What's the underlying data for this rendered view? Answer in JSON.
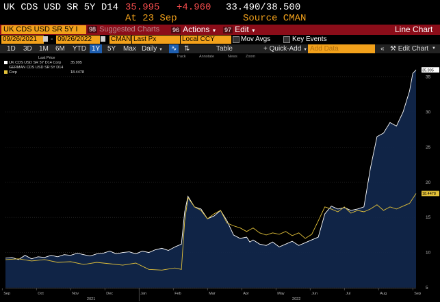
{
  "header": {
    "ticker": "UK CDS USD SR 5Y D14",
    "price": "35.995",
    "change": "+4.960",
    "range": "33.490/38.500",
    "date_line": "At 23 Sep",
    "source_line": "Source CMAN"
  },
  "toolbar": {
    "security": "UK CDS USD SR 5Y I",
    "suggested_num": "98",
    "suggested_label": "Suggested Charts",
    "actions_num": "96",
    "actions_label": "Actions",
    "edit_num": "97",
    "edit_label": "Edit",
    "chart_type": "Line Chart"
  },
  "settings": {
    "start_date": "09/26/2021",
    "end_date": "09/26/2022",
    "source": "CMAN",
    "field": "Last Px",
    "currency": "Local CCY",
    "mov_avgs": "Mov Avgs",
    "key_events": "Key Events"
  },
  "ranges": {
    "items": [
      "1D",
      "3D",
      "1M",
      "6M",
      "YTD",
      "1Y",
      "5Y",
      "Max"
    ],
    "selected": "1Y",
    "frequency": "Daily",
    "table": "Table",
    "quick_add": "+ Quick-Add",
    "add_data": "Add Data",
    "edit_chart": "Edit Chart"
  },
  "tools": {
    "track": "Track",
    "annotate": "Annotate",
    "news": "News",
    "zoom": "Zoom"
  },
  "legend": {
    "header": "Last Price",
    "items": [
      {
        "name": "UK CDS USD SR 5Y D14 Corp",
        "value": "35.995",
        "color": "#ffffff"
      },
      {
        "name": "GERMAN CDS USD SR 5Y D14 Corp",
        "value": "18.4478",
        "color": "#e3c23a"
      }
    ]
  },
  "chart_data": {
    "type": "line",
    "ylim": [
      5,
      37
    ],
    "yticks": [
      5,
      10,
      15,
      20,
      25,
      30,
      35
    ],
    "months": [
      "Sep",
      "Oct",
      "Nov",
      "Dec",
      "Jan",
      "Feb",
      "Mar",
      "Apr",
      "May",
      "Jun",
      "Jul",
      "Aug",
      "Sep"
    ],
    "years": [
      "2021",
      "2022"
    ],
    "last_labels": [
      "35.995",
      "18.4478"
    ],
    "series": [
      {
        "name": "UK CDS USD SR 5Y D14 Corp",
        "color": "#ffffff",
        "fill": "#11264a",
        "x": [
          0,
          4,
          8,
          12,
          16,
          20,
          24,
          28,
          32,
          36,
          40,
          44,
          48,
          52,
          56,
          60,
          64,
          68,
          72,
          76,
          80,
          84,
          88,
          92,
          96,
          100,
          104,
          108,
          110,
          112,
          116,
          120,
          124,
          128,
          132,
          136,
          140,
          144,
          148,
          150,
          152,
          156,
          160,
          164,
          168,
          172,
          176,
          180,
          184,
          188,
          192,
          196,
          200,
          204,
          208,
          212,
          216,
          220,
          224,
          228,
          232,
          236,
          240,
          244,
          248,
          250,
          252
        ],
        "values": [
          9.2,
          9.3,
          9.0,
          9.6,
          9.1,
          9.4,
          9.3,
          9.6,
          9.4,
          9.7,
          9.6,
          9.9,
          9.7,
          9.5,
          9.8,
          9.9,
          10.2,
          9.8,
          10.0,
          10.1,
          9.8,
          10.2,
          10.0,
          10.4,
          10.6,
          10.3,
          10.8,
          11.2,
          15.8,
          18.0,
          16.5,
          16.2,
          14.8,
          15.2,
          16.0,
          14.5,
          12.5,
          12.0,
          12.2,
          11.5,
          11.8,
          11.2,
          11.0,
          11.5,
          10.8,
          11.2,
          11.6,
          11.0,
          11.4,
          11.8,
          12.2,
          15.5,
          16.6,
          16.2,
          16.4,
          16.0,
          16.2,
          16.5,
          22.0,
          26.5,
          27.0,
          28.5,
          28.0,
          30.0,
          33.0,
          35.5,
          36.0
        ]
      },
      {
        "name": "GERMAN CDS USD SR 5Y D14 Corp",
        "color": "#e3c23a",
        "x": [
          0,
          8,
          16,
          24,
          32,
          40,
          48,
          56,
          64,
          72,
          80,
          88,
          96,
          104,
          108,
          110,
          112,
          116,
          120,
          124,
          128,
          132,
          136,
          140,
          144,
          148,
          152,
          156,
          160,
          164,
          168,
          172,
          176,
          180,
          184,
          188,
          192,
          196,
          200,
          204,
          208,
          212,
          216,
          220,
          224,
          228,
          232,
          236,
          240,
          244,
          248,
          252
        ],
        "values": [
          9.0,
          9.1,
          8.8,
          9.0,
          8.6,
          8.7,
          8.3,
          8.6,
          8.4,
          8.2,
          8.5,
          7.6,
          7.5,
          7.8,
          7.6,
          14.5,
          17.8,
          16.5,
          16.0,
          14.8,
          15.5,
          16.0,
          14.2,
          13.8,
          13.5,
          13.0,
          13.5,
          12.8,
          12.5,
          12.8,
          12.6,
          13.0,
          12.4,
          12.8,
          12.0,
          12.6,
          14.5,
          16.5,
          16.2,
          15.8,
          16.5,
          15.6,
          16.0,
          15.8,
          16.2,
          16.8,
          16.0,
          16.5,
          16.2,
          16.6,
          17.0,
          18.4
        ]
      }
    ]
  }
}
